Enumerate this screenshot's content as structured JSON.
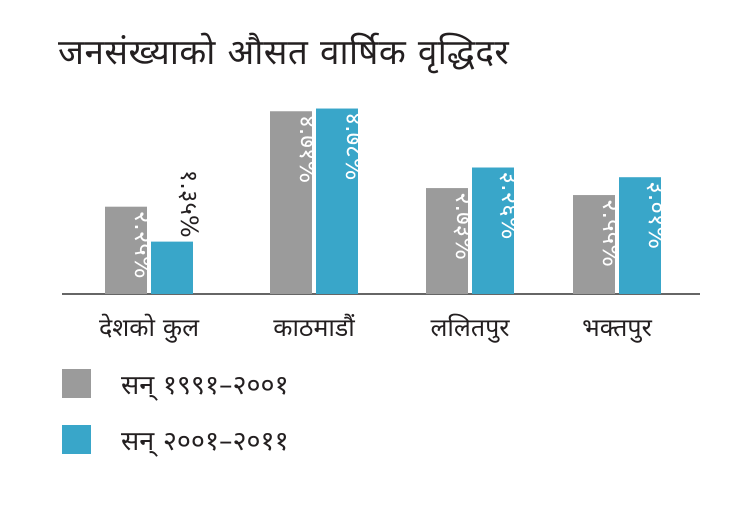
{
  "title": "जनसंख्याको औसत वार्षिक वृद्धिदर",
  "colors": {
    "series1": "#9b9b9b",
    "series2": "#39a6c9",
    "axis": "#333333"
  },
  "legend": [
    {
      "label": "सन् १९९१–२००१",
      "color": "#9b9b9b"
    },
    {
      "label": "सन् २००१–२०११",
      "color": "#39a6c9"
    }
  ],
  "chart_data": {
    "type": "bar",
    "title": "जनसंख्याको औसत वार्षिक वृद्धिदर",
    "xlabel": "",
    "ylabel": "",
    "ylim": [
      0,
      5
    ],
    "grid": false,
    "legend_placement": "bottom-left",
    "categories": [
      "देशको कुल",
      "काठमाडौं",
      "ललितपुर",
      "भक्तपुर"
    ],
    "series": [
      {
        "name": "सन् १९९१–२००१",
        "values": [
          2.25,
          4.71,
          2.73,
          2.55
        ],
        "labels": [
          "२.२५%",
          "४.७१%",
          "२.७३%",
          "२.५५%"
        ]
      },
      {
        "name": "सन् २००१–२०११",
        "values": [
          1.35,
          4.78,
          3.26,
          3.01
        ],
        "labels": [
          "१.३५%",
          "४.७८%",
          "३.२६%",
          "३.०१%"
        ]
      }
    ]
  }
}
